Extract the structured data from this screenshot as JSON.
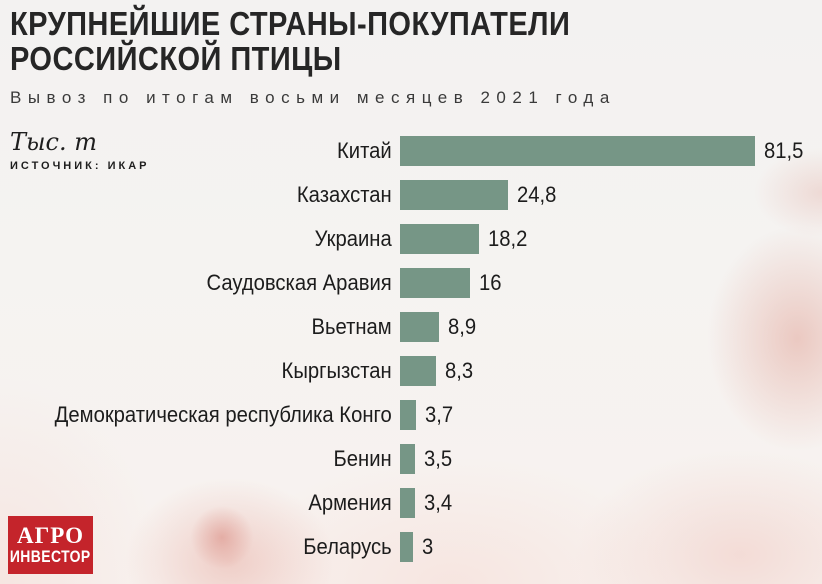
{
  "header": {
    "title_lines": [
      "КРУПНЕЙШИЕ СТРАНЫ-ПОКУПАТЕЛИ",
      "РОССИЙСКОЙ ПТИЦЫ"
    ],
    "subtitle": "Вывоз по итогам восьми месяцев 2021 года"
  },
  "meta": {
    "unit": "Тыс. т",
    "source": "ИСТОЧНИК: ИКАР"
  },
  "branding": {
    "logo_line1": "АГРО",
    "logo_line2": "ИНВЕСТОР",
    "logo_bg": "#c4242b",
    "logo_text_color": "#ffffff"
  },
  "chart_data": {
    "type": "bar",
    "orientation": "horizontal",
    "title": "КРУПНЕЙШИЕ СТРАНЫ-ПОКУПАТЕЛИ РОССИЙСКОЙ ПТИЦЫ",
    "subtitle": "Вывоз по итогам восьми месяцев 2021 года",
    "unit": "Тыс. т",
    "source": "ИСТОЧНИК: ИКАР",
    "categories": [
      "Китай",
      "Казахстан",
      "Украина",
      "Саудовская Аравия",
      "Вьетнам",
      "Кыргызстан",
      "Демократическая республика Конго",
      "Бенин",
      "Армения",
      "Беларусь"
    ],
    "values": [
      81.5,
      24.8,
      18.2,
      16,
      8.9,
      8.3,
      3.7,
      3.5,
      3.4,
      3
    ],
    "value_labels": [
      "81,5",
      "24,8",
      "18,2",
      "16",
      "8,9",
      "8,3",
      "3,7",
      "3,5",
      "3,4",
      "3"
    ],
    "bar_color": "#769686",
    "xlim": [
      0,
      85
    ],
    "grid": false,
    "legend": false
  }
}
